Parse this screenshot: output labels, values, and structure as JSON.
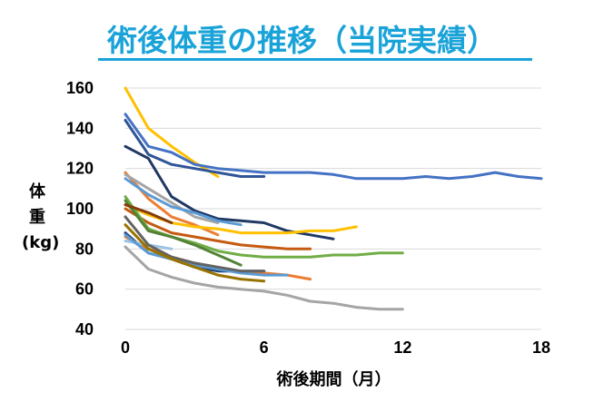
{
  "chart_data": {
    "type": "line",
    "title": "術後体重の推移（当院実績）",
    "ylabel": "体重(kg)",
    "xlabel": "術後期間（月）",
    "xlim": [
      0,
      18
    ],
    "ylim": [
      40,
      160
    ],
    "xticks": [
      0,
      6,
      12,
      18
    ],
    "yticks": [
      40,
      60,
      80,
      100,
      120,
      140,
      160
    ],
    "grid": true,
    "series": [
      {
        "color": "#FFC000",
        "x": [
          0,
          1,
          2,
          3,
          4
        ],
        "y": [
          160,
          140,
          131,
          123,
          116
        ]
      },
      {
        "color": "#4472C4",
        "x": [
          0,
          1,
          2,
          3,
          4,
          5,
          6,
          7,
          8,
          9,
          10,
          11,
          12,
          13,
          14,
          15,
          16,
          17,
          18
        ],
        "y": [
          147,
          131,
          128,
          122,
          120,
          119,
          118,
          118,
          118,
          117,
          115,
          115,
          115,
          116,
          115,
          116,
          118,
          116,
          115
        ]
      },
      {
        "color": "#2F5597",
        "x": [
          0,
          1,
          2,
          3,
          4,
          5,
          6
        ],
        "y": [
          144,
          127,
          122,
          120,
          118,
          116,
          116
        ]
      },
      {
        "color": "#203864",
        "x": [
          0,
          1,
          2,
          3,
          4,
          5,
          6,
          7,
          8,
          9
        ],
        "y": [
          131,
          125,
          106,
          99,
          95,
          94,
          93,
          89,
          87,
          85
        ]
      },
      {
        "color": "#ED7D31",
        "x": [
          0,
          1,
          2,
          3,
          4
        ],
        "y": [
          118,
          105,
          96,
          92,
          87
        ]
      },
      {
        "color": "#A5A5A5",
        "x": [
          0,
          1,
          2,
          3,
          4
        ],
        "y": [
          117,
          110,
          103,
          96,
          93
        ]
      },
      {
        "color": "#5B9BD5",
        "x": [
          0,
          1,
          2,
          3,
          4,
          5
        ],
        "y": [
          115,
          107,
          101,
          98,
          94,
          92
        ]
      },
      {
        "color": "#FFC000",
        "x": [
          0,
          1,
          2,
          3,
          4,
          5,
          6,
          7,
          8,
          9,
          10
        ],
        "y": [
          102,
          97,
          93,
          91,
          90,
          88,
          88,
          88,
          89,
          89,
          91
        ]
      },
      {
        "color": "#C55A11",
        "x": [
          0,
          1,
          2,
          3,
          4,
          5,
          6,
          7,
          8
        ],
        "y": [
          100,
          93,
          88,
          86,
          84,
          82,
          81,
          80,
          80
        ]
      },
      {
        "color": "#70AD47",
        "x": [
          0,
          1,
          2,
          3,
          4,
          5,
          6,
          7,
          8,
          9,
          10,
          11,
          12
        ],
        "y": [
          106,
          90,
          86,
          83,
          79,
          77,
          76,
          76,
          76,
          77,
          77,
          78,
          78
        ]
      },
      {
        "color": "#548235",
        "x": [
          0,
          1,
          2,
          3,
          4,
          5
        ],
        "y": [
          104,
          89,
          86,
          82,
          77,
          72
        ]
      },
      {
        "color": "#843C0C",
        "x": [
          0,
          1,
          2
        ],
        "y": [
          102,
          98,
          93
        ]
      },
      {
        "color": "#264478",
        "x": [
          0,
          1,
          2,
          3,
          4,
          5,
          6
        ],
        "y": [
          88,
          78,
          75,
          71,
          69,
          69,
          69
        ]
      },
      {
        "color": "#ED7D31",
        "x": [
          0,
          1,
          2,
          3,
          4,
          5,
          6,
          7,
          8
        ],
        "y": [
          86,
          80,
          76,
          73,
          70,
          69,
          68,
          67,
          65
        ]
      },
      {
        "color": "#9DC3E6",
        "x": [
          0,
          1,
          2
        ],
        "y": [
          84,
          82,
          80
        ]
      },
      {
        "color": "#5B9BD5",
        "x": [
          0,
          1,
          2,
          3,
          4,
          5,
          6,
          7
        ],
        "y": [
          87,
          78,
          75,
          72,
          70,
          68,
          67,
          67
        ]
      },
      {
        "color": "#636363",
        "x": [
          0,
          1,
          2,
          3,
          4,
          5,
          6
        ],
        "y": [
          96,
          82,
          76,
          73,
          71,
          69,
          69
        ]
      },
      {
        "color": "#997300",
        "x": [
          0,
          1,
          2,
          3,
          4,
          5,
          6
        ],
        "y": [
          92,
          80,
          75,
          71,
          67,
          65,
          64
        ]
      },
      {
        "color": "#A5A5A5",
        "x": [
          0,
          1,
          2,
          3,
          4,
          5,
          6,
          7,
          8,
          9,
          10,
          11,
          12
        ],
        "y": [
          81,
          70,
          66,
          63,
          61,
          60,
          59,
          57,
          54,
          53,
          51,
          50,
          50
        ]
      }
    ]
  }
}
